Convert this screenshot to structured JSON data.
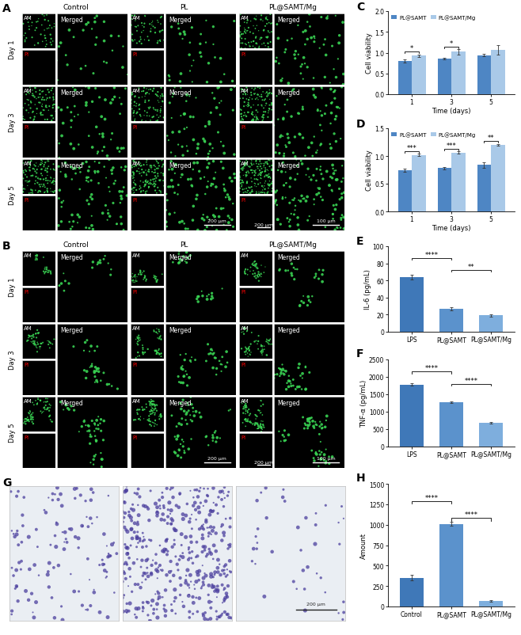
{
  "image_panels": [
    {
      "panel": "A",
      "columns": [
        "Control",
        "PL",
        "PL@SAMT/Mg"
      ],
      "rows": [
        "Day 1",
        "Day 3",
        "Day 5"
      ],
      "inset_labels": [
        "AM",
        "PI"
      ],
      "main_label": "Merged",
      "scale_bars": [
        "200 μm",
        "200 μm",
        "100 μm"
      ]
    },
    {
      "panel": "B",
      "columns": [
        "Control",
        "PL",
        "PL@SAMT/Mg"
      ],
      "rows": [
        "Day 1",
        "Day 3",
        "Day 5"
      ],
      "inset_labels": [
        "AM",
        "PI"
      ],
      "main_label": "Merged",
      "scale_bars": [
        "200 μm",
        "200 μm",
        "100 μm"
      ]
    },
    {
      "panel": "G",
      "scale_bars": [
        "200 μm"
      ]
    }
  ],
  "chart_data": [
    {
      "panel": "C",
      "type": "bar",
      "xlabel": "Time (days)",
      "ylabel": "Cell viability",
      "categories": [
        "1",
        "3",
        "5"
      ],
      "ylim": [
        0,
        2.0
      ],
      "yticks": [
        {
          "value": 0,
          "label": "0.0"
        },
        {
          "value": 0.5,
          "label": "0.5"
        },
        {
          "value": 1.0,
          "label": "1.0"
        },
        {
          "value": 1.5,
          "label": "1.5"
        },
        {
          "value": 2.0,
          "label": "2.0"
        }
      ],
      "legend": "upper left",
      "series": [
        {
          "name": "PL@SAMT",
          "color": "#4e86c4",
          "values": [
            0.8,
            0.86,
            0.94
          ],
          "errors": [
            0.03,
            0.02,
            0.03
          ]
        },
        {
          "name": "PL@SAMT/Mg",
          "color": "#a9c9e8",
          "values": [
            0.93,
            1.02,
            1.07
          ],
          "errors": [
            0.03,
            0.06,
            0.12
          ]
        }
      ],
      "significance": [
        "*",
        "*",
        null
      ]
    },
    {
      "panel": "D",
      "type": "bar",
      "xlabel": "Time (days)",
      "ylabel": "Cell viability",
      "categories": [
        "1",
        "3",
        "5"
      ],
      "ylim": [
        0,
        1.5
      ],
      "yticks": [
        {
          "value": 0,
          "label": "0.0"
        },
        {
          "value": 0.5,
          "label": "0.5"
        },
        {
          "value": 1.0,
          "label": "1.0"
        },
        {
          "value": 1.5,
          "label": "1.5"
        }
      ],
      "legend": "upper left",
      "series": [
        {
          "name": "PL@SAMT",
          "color": "#4e86c4",
          "values": [
            0.74,
            0.78,
            0.84
          ],
          "errors": [
            0.03,
            0.02,
            0.05
          ]
        },
        {
          "name": "PL@SAMT/Mg",
          "color": "#a9c9e8",
          "values": [
            1.02,
            1.06,
            1.2
          ],
          "errors": [
            0.02,
            0.02,
            0.02
          ]
        }
      ],
      "significance": [
        "***",
        "***",
        "**"
      ]
    },
    {
      "panel": "E",
      "type": "bar",
      "ylabel": "IL-6 (pg/mL)",
      "categories": [
        "LPS",
        "PL@SAMT",
        "PL@SAMT/Mg"
      ],
      "values": [
        64,
        27,
        19
      ],
      "errors": [
        3,
        2,
        1
      ],
      "colors": [
        "#3f78b8",
        "#5b92cc",
        "#7eaedd"
      ],
      "ylim": [
        0,
        100
      ],
      "yticks": [
        0,
        20,
        40,
        60,
        80,
        100
      ],
      "comparisons": [
        {
          "pair": [
            "LPS",
            "PL@SAMT"
          ],
          "label": "****"
        },
        {
          "pair": [
            "PL@SAMT",
            "PL@SAMT/Mg"
          ],
          "label": "**"
        }
      ]
    },
    {
      "panel": "F",
      "type": "bar",
      "ylabel": "TNF-α (pg/mL)",
      "categories": [
        "LPS",
        "PL@SAMT",
        "PL@SAMT/Mg"
      ],
      "values": [
        1780,
        1270,
        690
      ],
      "errors": [
        40,
        25,
        20
      ],
      "colors": [
        "#3f78b8",
        "#5b92cc",
        "#7eaedd"
      ],
      "ylim": [
        0,
        2500
      ],
      "yticks": [
        0,
        500,
        1000,
        1500,
        2000,
        2500
      ],
      "comparisons": [
        {
          "pair": [
            "LPS",
            "PL@SAMT"
          ],
          "label": "****"
        },
        {
          "pair": [
            "PL@SAMT",
            "PL@SAMT/Mg"
          ],
          "label": "****"
        }
      ]
    },
    {
      "panel": "H",
      "type": "bar",
      "ylabel": "Amount",
      "categories": [
        "Control",
        "PL@SAMT",
        "PL@SAMT/Mg"
      ],
      "values": [
        350,
        1010,
        70
      ],
      "errors": [
        35,
        25,
        10
      ],
      "colors": [
        "#3f78b8",
        "#5b92cc",
        "#7eaedd"
      ],
      "ylim": [
        0,
        1500
      ],
      "yticks": [
        0,
        250,
        500,
        750,
        1000,
        1250,
        1500
      ],
      "comparisons": [
        {
          "pair": [
            "Control",
            "PL@SAMT"
          ],
          "label": "****"
        },
        {
          "pair": [
            "PL@SAMT",
            "PL@SAMT/Mg"
          ],
          "label": "****"
        }
      ]
    }
  ]
}
